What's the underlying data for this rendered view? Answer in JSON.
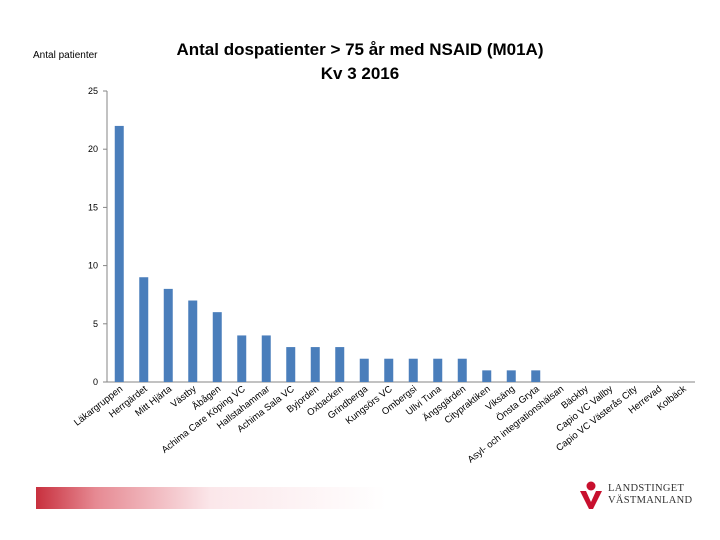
{
  "chart_data": {
    "type": "bar",
    "title_lines": [
      "Antal dospatienter > 75 år med NSAID (M01A)",
      "Kv 3 2016"
    ],
    "ylabel": "Antal patienter",
    "xlabel": "",
    "ylim": [
      0,
      25
    ],
    "yticks": [
      0,
      5,
      10,
      15,
      20,
      25
    ],
    "grid": false,
    "color": "#4a7ebb",
    "categories": [
      "Läkargruppen",
      "Herrgärdet",
      "Mitt Hjärta",
      "Västby",
      "Åbågen",
      "Achima Care Köping VC",
      "Hallstahammar",
      "Achima Sala VC",
      "Byjorden",
      "Oxbacken",
      "Grindberga",
      "Kungsörs VC",
      "Ombergsi",
      "Ullvi Tuna",
      "Ängsgärden",
      "Citypraktiken",
      "Viksäng",
      "Önsta Gryta",
      "Asyl- och integrationshälsan",
      "Bäckby",
      "Capio VC Vallby",
      "Capio VC Västerås City",
      "Herrevad",
      "Kolbäck"
    ],
    "values": [
      22,
      9,
      8,
      7,
      6,
      4,
      4,
      3,
      3,
      3,
      2,
      2,
      2,
      2,
      2,
      1,
      1,
      1,
      0,
      0,
      0,
      0,
      0,
      0
    ]
  },
  "logo": {
    "line1": "LANDSTINGET",
    "line2": "VÄSTMANLAND",
    "color": "#c8102e"
  }
}
